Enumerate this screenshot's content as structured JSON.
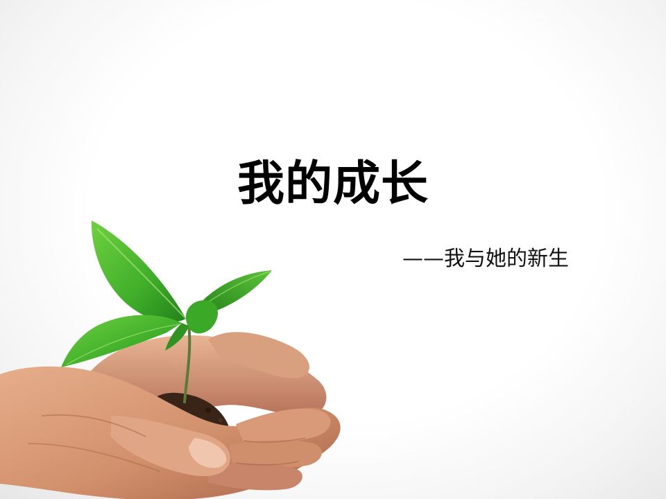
{
  "slide": {
    "title": "我的成长",
    "subtitle": "——我与她的新生",
    "image": {
      "subject": "hands-holding-seedling-icon",
      "colors": {
        "leaf": "#3fae2a",
        "leaf_dark": "#23801a",
        "skin": "#d99a78",
        "skin_shadow": "#a8654a",
        "soil": "#3a2418"
      }
    }
  }
}
